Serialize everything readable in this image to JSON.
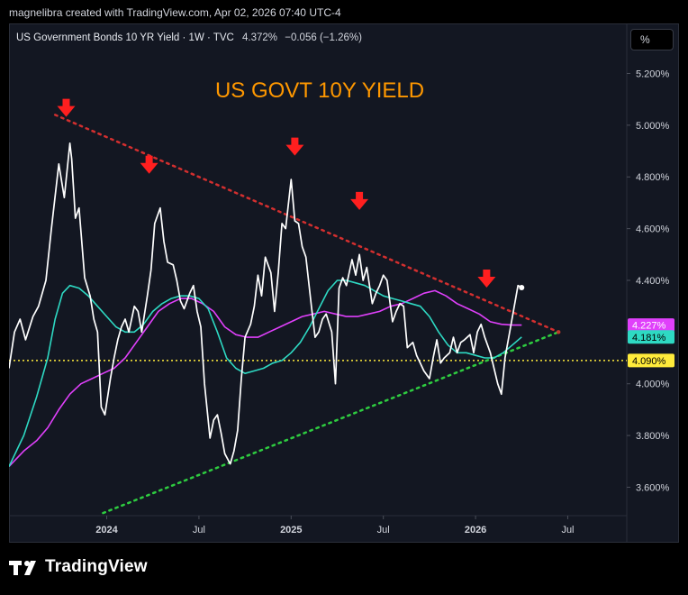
{
  "attribution": "magnelibra created with TradingView.com, Apr 02, 2026 07:40 UTC-4",
  "legend": {
    "symbol": "US Government Bonds 10 YR Yield · 1W · TVC",
    "last": "4.372%",
    "change": "−0.056 (−1.26%)"
  },
  "unit_button": "%",
  "brand": "TradingView",
  "colors": {
    "background": "#131722",
    "price": "#ffffff",
    "ma_fast": "#2ed9c3",
    "ma_slow": "#e040fb",
    "resistance": "#d32f2f",
    "support": "#2ecc40",
    "reference": "#ffeb3b",
    "arrow": "#ff1f1f",
    "title": "#ff9800"
  },
  "chart_data": {
    "type": "line",
    "title": "US GOVT 10Y YIELD",
    "ylabel": "%",
    "ylim": [
      3.49,
      5.39
    ],
    "xlim": [
      2023.47,
      2026.82
    ],
    "y_ticks": [
      "5.200%",
      "5.000%",
      "4.800%",
      "4.600%",
      "4.400%",
      "4.000%",
      "3.800%",
      "3.600%"
    ],
    "x_ticks": [
      {
        "label": "2024",
        "x": 2024.0,
        "bold": true
      },
      {
        "label": "Jul",
        "x": 2024.5,
        "bold": false
      },
      {
        "label": "2025",
        "x": 2025.0,
        "bold": true
      },
      {
        "label": "Jul",
        "x": 2025.5,
        "bold": false
      },
      {
        "label": "2026",
        "x": 2026.0,
        "bold": true
      },
      {
        "label": "Jul",
        "x": 2026.5,
        "bold": false
      }
    ],
    "price_badges": [
      {
        "label": "4.227%",
        "value": 4.227,
        "color": "#e040fb",
        "text_color": "#ffffff"
      },
      {
        "label": "4.181%",
        "value": 4.181,
        "color": "#2ed9c3",
        "text_color": "#000000"
      },
      {
        "label": "4.090%",
        "value": 4.09,
        "color": "#ffeb3b",
        "text_color": "#000000"
      }
    ],
    "series": [
      {
        "name": "US10Y weekly",
        "x": [
          2023.47,
          2023.5,
          2023.53,
          2023.56,
          2023.6,
          2023.63,
          2023.67,
          2023.7,
          2023.74,
          2023.77,
          2023.8,
          2023.81,
          2023.83,
          2023.85,
          2023.88,
          2023.91,
          2023.93,
          2023.95,
          2023.97,
          2023.99,
          2024.02,
          2024.04,
          2024.06,
          2024.08,
          2024.1,
          2024.12,
          2024.15,
          2024.17,
          2024.19,
          2024.22,
          2024.24,
          2024.26,
          2024.29,
          2024.31,
          2024.33,
          2024.36,
          2024.38,
          2024.4,
          2024.42,
          2024.45,
          2024.47,
          2024.49,
          2024.51,
          2024.53,
          2024.56,
          2024.58,
          2024.6,
          2024.62,
          2024.64,
          2024.67,
          2024.69,
          2024.71,
          2024.73,
          2024.75,
          2024.78,
          2024.8,
          2024.82,
          2024.84,
          2024.86,
          2024.89,
          2024.91,
          2024.93,
          2024.95,
          2024.97,
          2025.0,
          2025.02,
          2025.04,
          2025.06,
          2025.08,
          2025.11,
          2025.13,
          2025.15,
          2025.17,
          2025.19,
          2025.22,
          2025.24,
          2025.26,
          2025.28,
          2025.3,
          2025.33,
          2025.35,
          2025.37,
          2025.39,
          2025.41,
          2025.44,
          2025.46,
          2025.48,
          2025.5,
          2025.52,
          2025.55,
          2025.57,
          2025.59,
          2025.61,
          2025.63,
          2025.66,
          2025.68,
          2025.7,
          2025.72,
          2025.75,
          2025.77,
          2025.79,
          2025.81,
          2025.83,
          2025.86,
          2025.88,
          2025.9,
          2025.92,
          2025.94,
          2025.97,
          2025.99,
          2026.01,
          2026.03,
          2026.05,
          2026.08,
          2026.1,
          2026.12,
          2026.14,
          2026.16,
          2026.19,
          2026.21,
          2026.23,
          2026.25
        ],
        "values": [
          4.06,
          4.2,
          4.25,
          4.17,
          4.26,
          4.3,
          4.4,
          4.6,
          4.85,
          4.72,
          4.93,
          4.87,
          4.64,
          4.68,
          4.41,
          4.34,
          4.25,
          4.2,
          3.91,
          3.88,
          4.02,
          4.1,
          4.17,
          4.22,
          4.25,
          4.2,
          4.3,
          4.28,
          4.2,
          4.34,
          4.44,
          4.62,
          4.68,
          4.55,
          4.47,
          4.46,
          4.4,
          4.32,
          4.29,
          4.35,
          4.38,
          4.28,
          4.22,
          4.0,
          3.79,
          3.86,
          3.88,
          3.81,
          3.73,
          3.69,
          3.74,
          3.82,
          4.02,
          4.18,
          4.23,
          4.3,
          4.42,
          4.34,
          4.49,
          4.43,
          4.28,
          4.43,
          4.62,
          4.6,
          4.79,
          4.63,
          4.62,
          4.53,
          4.49,
          4.3,
          4.18,
          4.2,
          4.25,
          4.27,
          4.2,
          4.0,
          4.37,
          4.41,
          4.38,
          4.48,
          4.42,
          4.5,
          4.4,
          4.45,
          4.31,
          4.35,
          4.38,
          4.42,
          4.4,
          4.24,
          4.28,
          4.31,
          4.3,
          4.14,
          4.16,
          4.11,
          4.08,
          4.05,
          4.02,
          4.1,
          4.17,
          4.08,
          4.1,
          4.12,
          4.18,
          4.12,
          4.16,
          4.17,
          4.19,
          4.12,
          4.2,
          4.23,
          4.18,
          4.12,
          4.06,
          4.0,
          3.96,
          4.1,
          4.22,
          4.3,
          4.38,
          4.372
        ]
      },
      {
        "name": "Moving average (fast)",
        "x": [
          2023.47,
          2023.55,
          2023.62,
          2023.68,
          2023.72,
          2023.76,
          2023.8,
          2023.85,
          2023.9,
          2023.95,
          2024.0,
          2024.05,
          2024.1,
          2024.15,
          2024.2,
          2024.25,
          2024.3,
          2024.35,
          2024.4,
          2024.45,
          2024.5,
          2024.55,
          2024.6,
          2024.65,
          2024.7,
          2024.75,
          2024.8,
          2024.85,
          2024.9,
          2024.95,
          2025.0,
          2025.05,
          2025.1,
          2025.15,
          2025.2,
          2025.25,
          2025.3,
          2025.35,
          2025.4,
          2025.45,
          2025.5,
          2025.55,
          2025.6,
          2025.65,
          2025.7,
          2025.75,
          2025.8,
          2025.85,
          2025.9,
          2025.95,
          2026.0,
          2026.05,
          2026.1,
          2026.15,
          2026.2,
          2026.25
        ],
        "values": [
          3.68,
          3.8,
          3.95,
          4.1,
          4.25,
          4.35,
          4.38,
          4.37,
          4.34,
          4.3,
          4.26,
          4.22,
          4.2,
          4.2,
          4.23,
          4.28,
          4.31,
          4.33,
          4.34,
          4.34,
          4.33,
          4.29,
          4.2,
          4.1,
          4.06,
          4.04,
          4.05,
          4.06,
          4.08,
          4.09,
          4.12,
          4.16,
          4.22,
          4.29,
          4.36,
          4.4,
          4.4,
          4.39,
          4.38,
          4.36,
          4.34,
          4.33,
          4.32,
          4.31,
          4.3,
          4.26,
          4.2,
          4.15,
          4.12,
          4.12,
          4.11,
          4.1,
          4.1,
          4.12,
          4.15,
          4.181
        ]
      },
      {
        "name": "Moving average (slow)",
        "x": [
          2023.47,
          2023.55,
          2023.62,
          2023.68,
          2023.74,
          2023.8,
          2023.86,
          2023.92,
          2023.98,
          2024.04,
          2024.1,
          2024.16,
          2024.22,
          2024.28,
          2024.34,
          2024.4,
          2024.46,
          2024.52,
          2024.58,
          2024.64,
          2024.7,
          2024.76,
          2024.82,
          2024.88,
          2024.94,
          2025.0,
          2025.06,
          2025.12,
          2025.18,
          2025.24,
          2025.3,
          2025.36,
          2025.42,
          2025.48,
          2025.54,
          2025.6,
          2025.66,
          2025.72,
          2025.78,
          2025.84,
          2025.9,
          2025.96,
          2026.02,
          2026.08,
          2026.14,
          2026.2,
          2026.25
        ],
        "values": [
          3.68,
          3.74,
          3.78,
          3.83,
          3.9,
          3.96,
          4.0,
          4.02,
          4.04,
          4.06,
          4.1,
          4.16,
          4.22,
          4.28,
          4.31,
          4.33,
          4.33,
          4.31,
          4.28,
          4.22,
          4.19,
          4.18,
          4.18,
          4.2,
          4.22,
          4.24,
          4.26,
          4.27,
          4.28,
          4.27,
          4.26,
          4.26,
          4.27,
          4.28,
          4.3,
          4.31,
          4.33,
          4.35,
          4.36,
          4.34,
          4.31,
          4.29,
          4.27,
          4.24,
          4.23,
          4.227,
          4.227
        ]
      },
      {
        "name": "Resistance trendline",
        "x": [
          2023.72,
          2026.45
        ],
        "values": [
          5.04,
          4.2
        ]
      },
      {
        "name": "Support trendline",
        "x": [
          2023.98,
          2026.45
        ],
        "values": [
          3.5,
          4.2
        ]
      },
      {
        "name": "Reference level",
        "x": [
          2023.47,
          2026.82
        ],
        "values": [
          4.09,
          4.09
        ]
      }
    ],
    "annotations": [
      {
        "type": "arrow-down",
        "x": 2023.78,
        "y": 5.06
      },
      {
        "type": "arrow-down",
        "x": 2024.23,
        "y": 4.84
      },
      {
        "type": "arrow-down",
        "x": 2025.02,
        "y": 4.91
      },
      {
        "type": "arrow-down",
        "x": 2025.37,
        "y": 4.7
      },
      {
        "type": "arrow-down",
        "x": 2026.06,
        "y": 4.4
      }
    ]
  }
}
